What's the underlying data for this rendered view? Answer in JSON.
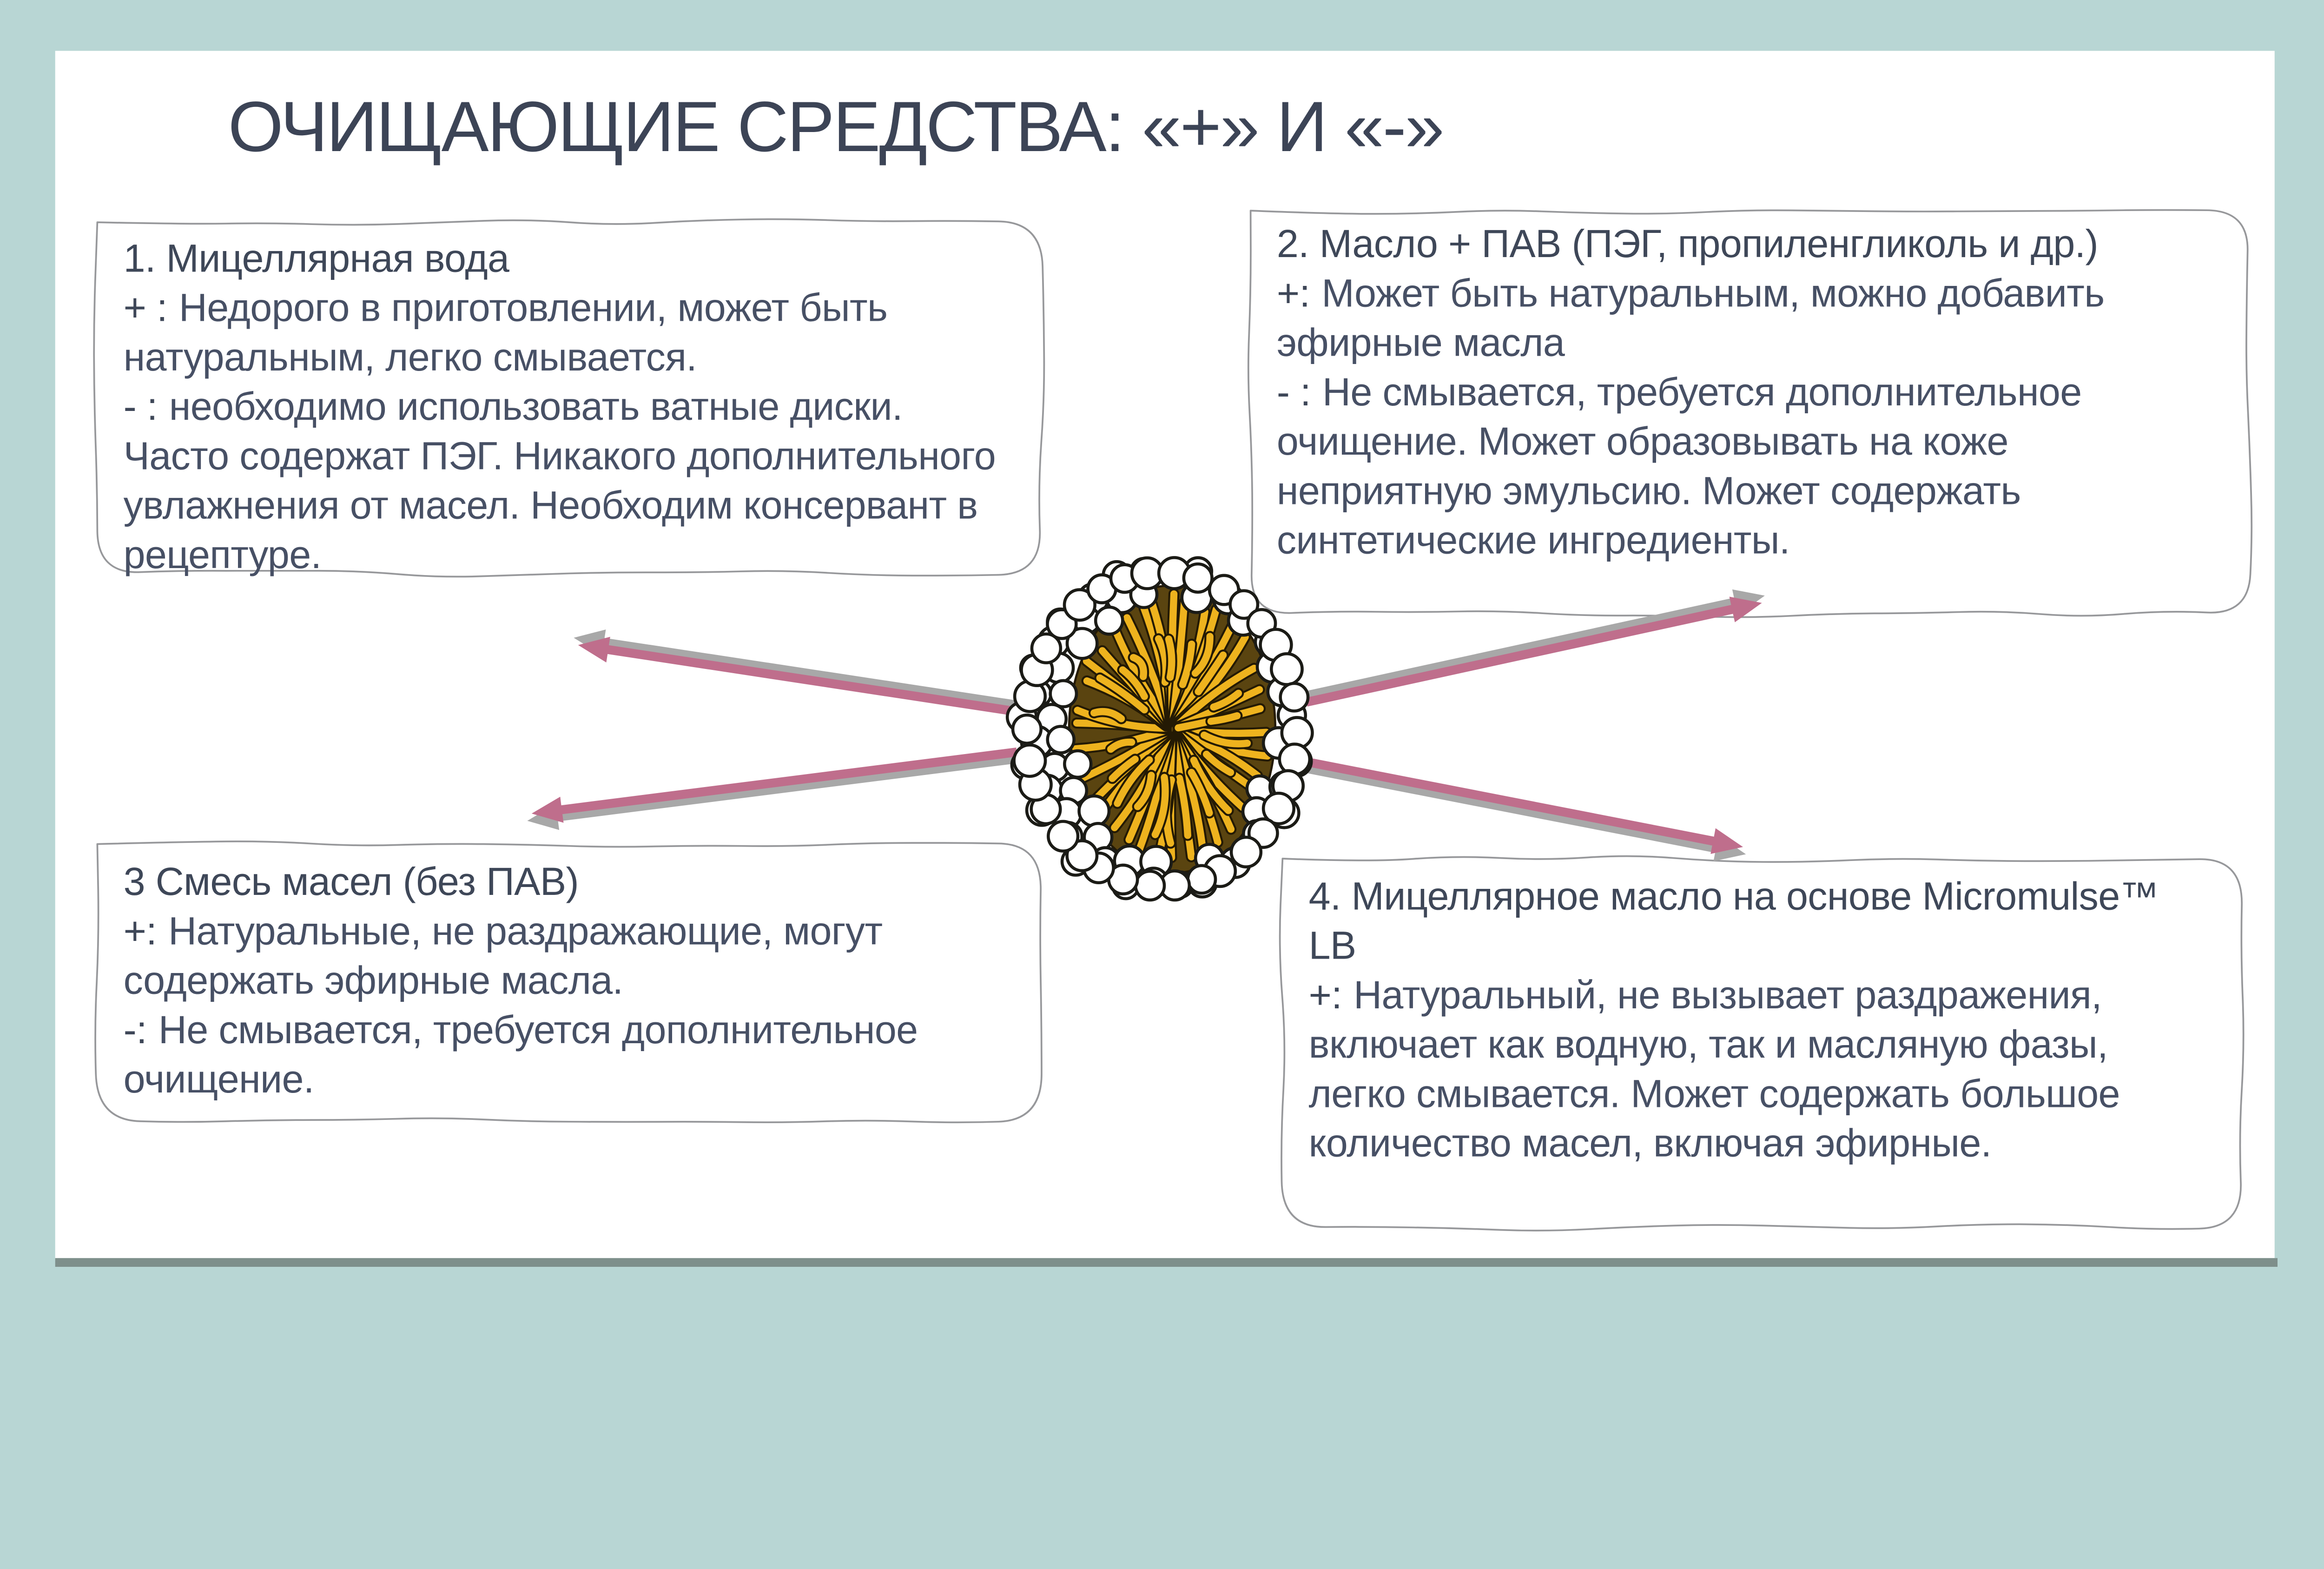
{
  "slide": {
    "title": "ОЧИЩАЮЩИЕ СРЕДСТВА: «+» И «-»",
    "illustration": "micelle-cutaway",
    "boxes": [
      {
        "title": "1. Мицеллярная вода",
        "lines": [
          {
            "prefix": "+ :",
            "text": "Недорого в приготовлении, может быть натуральным, легко смывается."
          },
          {
            "prefix": "- :",
            "text": "необходимо использовать ватные диски. Часто содержат ПЭГ. Никакого дополнительного увлажнения от масел. Необходим консервант в рецептуре."
          }
        ]
      },
      {
        "title": "2. Масло + ПАВ (ПЭГ, пропиленгликоль и др.)",
        "lines": [
          {
            "prefix": "+:",
            "text": "Может быть натуральным, можно добавить эфирные масла"
          },
          {
            "prefix": "- :",
            "text": "Не смывается, требуется дополнительное очищение. Может образовывать на коже неприятную эмульсию. Может содержать синтетические ингредиенты."
          }
        ]
      },
      {
        "title": "3 Смесь масел (без ПАВ)",
        "lines": [
          {
            "prefix": "+:",
            "text": "Натуральные, не раздражающие, могут содержать эфирные масла."
          },
          {
            "prefix": "-:",
            "text": "Не смывается, требуется дополнительное очищение."
          }
        ]
      },
      {
        "title": "4. Мицеллярное масло на основе Micromulse™ LB",
        "lines": [
          {
            "prefix": "+:",
            "text": "Натуральный, не вызывает раздражения, включает как водную, так и масляную фазы, легко смывается. Может содержать большое количество масел, включая эфирные."
          }
        ]
      }
    ],
    "theme": {
      "canvas_bg": "#b8d6d4",
      "slide_bg": "#ffffff",
      "accent_bar": "#7e8f8b",
      "title_color": "#3c4456",
      "heading_color": "#3e4758",
      "body_color": "#475065",
      "box_border": "#97989b",
      "arrow_pink": "#bf6e8c",
      "arrow_gray": "#a8a8a8",
      "micelle_head_fill": "#ffffff",
      "micelle_outline": "#1b1b16",
      "micelle_tail_gold": "#eeb31e",
      "micelle_tail_outline": "#241a04",
      "micelle_core_dark": "#5a4410"
    }
  }
}
